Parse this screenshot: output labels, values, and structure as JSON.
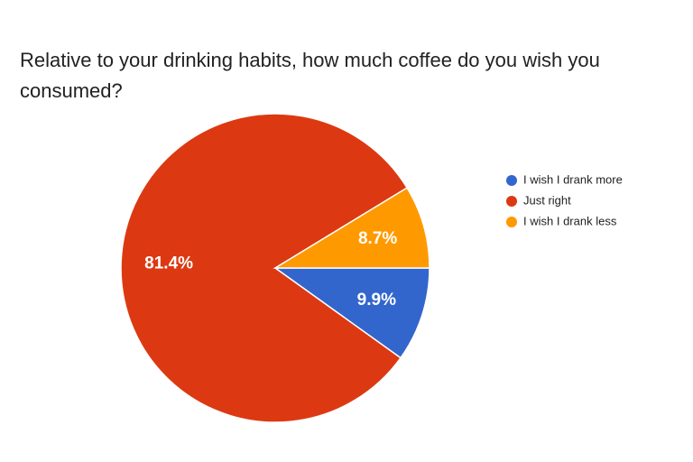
{
  "chart_data": {
    "type": "pie",
    "title": "Relative to your drinking habits, how much coffee do you wish you consumed?",
    "categories": [
      "I wish I drank more",
      "Just right",
      "I wish I drank less"
    ],
    "values": [
      9.9,
      81.4,
      8.7
    ],
    "value_labels": [
      "9.9%",
      "81.4%",
      "8.7%"
    ],
    "colors": [
      "#3366cc",
      "#dc3912",
      "#ff9900"
    ],
    "legend": "right"
  }
}
